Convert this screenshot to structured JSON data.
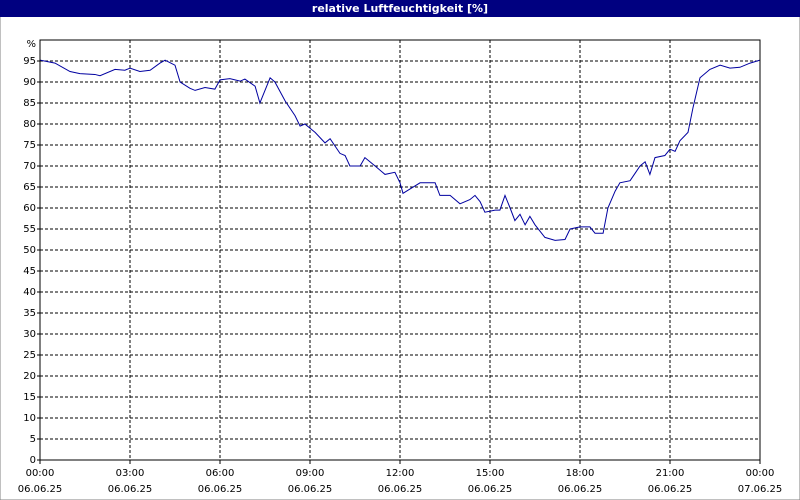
{
  "chart_data": {
    "type": "line",
    "title": "relative Luftfeuchtigkeit [%]",
    "ylabel": "%",
    "xlim": [
      0,
      24
    ],
    "ylim": [
      0,
      100
    ],
    "xticks": [
      {
        "value": 0,
        "label": "00:00"
      },
      {
        "value": 3,
        "label": "03:00"
      },
      {
        "value": 6,
        "label": "06:00"
      },
      {
        "value": 9,
        "label": "09:00"
      },
      {
        "value": 12,
        "label": "12:00"
      },
      {
        "value": 15,
        "label": "15:00"
      },
      {
        "value": 18,
        "label": "18:00"
      },
      {
        "value": 21,
        "label": "21:00"
      },
      {
        "value": 24,
        "label": "00:00"
      }
    ],
    "xtick_dates": [
      "06.06.25",
      "06.06.25",
      "06.06.25",
      "06.06.25",
      "06.06.25",
      "06.06.25",
      "06.06.25",
      "06.06.25",
      "07.06.25"
    ],
    "yticks": [
      0,
      5,
      10,
      15,
      20,
      25,
      30,
      35,
      40,
      45,
      50,
      55,
      60,
      65,
      70,
      75,
      80,
      85,
      90,
      95
    ],
    "grid": true,
    "series": [
      {
        "name": "relative Luftfeuchtigkeit",
        "color": "#0000a0",
        "x": [
          0,
          0.5,
          1,
          1.33,
          1.83,
          2,
          2.5,
          2.83,
          3,
          3.33,
          3.67,
          4,
          4.17,
          4.5,
          4.67,
          5,
          5.17,
          5.5,
          5.83,
          6,
          6.33,
          6.67,
          6.83,
          7.17,
          7.33,
          7.67,
          7.83,
          8.17,
          8.5,
          8.67,
          8.83,
          9.17,
          9.5,
          9.67,
          10,
          10.17,
          10.33,
          10.67,
          10.83,
          11.17,
          11.5,
          11.83,
          12,
          12.1,
          12.33,
          12.67,
          13,
          13.17,
          13.33,
          13.67,
          14,
          14.33,
          14.5,
          14.67,
          14.83,
          15.17,
          15.33,
          15.5,
          15.67,
          15.83,
          16,
          16.17,
          16.33,
          16.5,
          16.83,
          17.17,
          17.5,
          17.67,
          18,
          18.33,
          18.5,
          18.77,
          18.93,
          19.17,
          19.33,
          19.67,
          20,
          20.17,
          20.33,
          20.5,
          20.83,
          21,
          21.17,
          21.33,
          21.6,
          21.77,
          22,
          22.33,
          22.67,
          23,
          23.33,
          23.67,
          24
        ],
        "values": [
          95.2,
          94.5,
          92.5,
          92,
          91.8,
          91.5,
          93,
          92.8,
          93.3,
          92.5,
          92.8,
          94.5,
          95.2,
          94,
          90,
          88.5,
          88,
          88.7,
          88.3,
          90.5,
          90.8,
          90.2,
          90.7,
          89,
          85,
          91,
          90,
          85.5,
          82,
          79.5,
          80,
          78,
          75.5,
          76.5,
          73,
          72.5,
          70,
          70,
          72,
          70,
          68,
          68.5,
          66,
          63.5,
          64.5,
          66,
          66,
          66,
          63,
          63,
          61,
          62,
          63,
          61.5,
          59,
          59.5,
          59.5,
          63,
          60,
          57,
          58.5,
          56,
          58,
          56,
          53,
          52.3,
          52.5,
          55,
          55.5,
          55.5,
          54,
          54,
          60,
          64,
          66,
          66.5,
          70,
          71,
          68,
          72,
          72.5,
          74,
          73.5,
          76,
          78,
          84,
          91,
          93,
          94,
          93.3,
          93.5,
          94.5,
          95.2
        ]
      }
    ]
  }
}
